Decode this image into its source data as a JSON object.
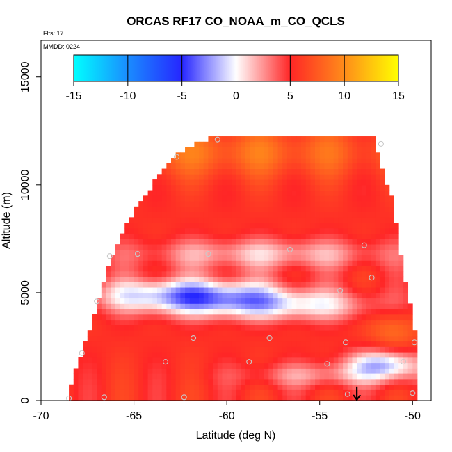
{
  "chart_data": {
    "type": "heatmap",
    "title": "ORCAS RF17 CO_NOAA_m_CO_QCLS",
    "annotations": {
      "flights": "Flts: 17",
      "date": "MMDD: 0224"
    },
    "xlabel": "Latitude (deg N)",
    "ylabel": "Altitude (m)",
    "xlim": [
      -70,
      -49
    ],
    "ylim": [
      0,
      16700
    ],
    "x_ticks": [
      {
        "value": -70,
        "label": "-70"
      },
      {
        "value": -65,
        "label": "-65"
      },
      {
        "value": -60,
        "label": "-60"
      },
      {
        "value": -55,
        "label": "-55"
      },
      {
        "value": -50,
        "label": "-50"
      }
    ],
    "y_ticks": [
      {
        "value": 0,
        "label": "0"
      },
      {
        "value": 5000,
        "label": "5000"
      },
      {
        "value": 10000,
        "label": "10000"
      },
      {
        "value": 15000,
        "label": "15000"
      }
    ],
    "colorbar": {
      "range": [
        -15,
        15
      ],
      "ticks": [
        {
          "value": -15,
          "label": "-15"
        },
        {
          "value": -10,
          "label": "-10"
        },
        {
          "value": -5,
          "label": "-5"
        },
        {
          "value": 0,
          "label": "0"
        },
        {
          "value": 5,
          "label": "5"
        },
        {
          "value": 10,
          "label": "10"
        },
        {
          "value": 15,
          "label": "15"
        }
      ],
      "stops": [
        {
          "value": -15,
          "color": "#00ffff"
        },
        {
          "value": -10,
          "color": "#1a8cff"
        },
        {
          "value": -5,
          "color": "#2626ff"
        },
        {
          "value": 0,
          "color": "#ffffff"
        },
        {
          "value": 5,
          "color": "#ff2626"
        },
        {
          "value": 10,
          "color": "#ff8c1a"
        },
        {
          "value": 15,
          "color": "#ffff00"
        }
      ]
    },
    "grid": {
      "lat_min": -69,
      "lat_max": -49.5,
      "lat_step": 0.25,
      "alt_max": 12250,
      "alt_step": 250
    },
    "domain_envelope": [
      {
        "lat": -68.5,
        "top": 250
      },
      {
        "lat": -68.3,
        "top": 1000
      },
      {
        "lat": -68.0,
        "top": 1500
      },
      {
        "lat": -67.7,
        "top": 2500
      },
      {
        "lat": -67.2,
        "top": 3600
      },
      {
        "lat": -66.8,
        "top": 4800
      },
      {
        "lat": -66.5,
        "top": 6000
      },
      {
        "lat": -66.0,
        "top": 7000
      },
      {
        "lat": -65.5,
        "top": 7900
      },
      {
        "lat": -65.0,
        "top": 8600
      },
      {
        "lat": -64.5,
        "top": 9300
      },
      {
        "lat": -64.0,
        "top": 9900
      },
      {
        "lat": -63.5,
        "top": 10500
      },
      {
        "lat": -63.0,
        "top": 11000
      },
      {
        "lat": -62.5,
        "top": 11400
      },
      {
        "lat": -62.0,
        "top": 11700
      },
      {
        "lat": -61.5,
        "top": 11850
      },
      {
        "lat": -61.0,
        "top": 12000
      },
      {
        "lat": -60.5,
        "top": 12250
      },
      {
        "lat": -52.0,
        "top": 12000
      },
      {
        "lat": -51.8,
        "top": 11000
      },
      {
        "lat": -51.5,
        "top": 10200
      },
      {
        "lat": -51.0,
        "top": 9000
      },
      {
        "lat": -50.7,
        "top": 7000
      },
      {
        "lat": -50.3,
        "top": 5000
      },
      {
        "lat": -50.0,
        "top": 3800
      },
      {
        "lat": -49.8,
        "top": 2600
      }
    ],
    "field_features": [
      {
        "lat": -62.0,
        "alt": 4900,
        "sigma_lat": 3.5,
        "sigma_alt": 550,
        "amp": -8,
        "note": "white band mid-left"
      },
      {
        "lat": -57.0,
        "alt": 4400,
        "sigma_lat": 4.0,
        "sigma_alt": 500,
        "amp": -5,
        "note": "pale band center"
      },
      {
        "lat": -58.0,
        "alt": 6800,
        "sigma_lat": 5.0,
        "sigma_alt": 500,
        "amp": -4,
        "note": "pale band upper"
      },
      {
        "lat": -51.5,
        "alt": 1700,
        "sigma_lat": 1.4,
        "sigma_alt": 500,
        "amp": -7,
        "note": "white patch lower right"
      },
      {
        "lat": -55.0,
        "alt": 1200,
        "sigma_lat": 3.0,
        "sigma_alt": 400,
        "amp": -3,
        "note": "pale band low"
      },
      {
        "lat": -60.0,
        "alt": 11500,
        "sigma_lat": 8.0,
        "sigma_alt": 800,
        "amp": 3,
        "note": "saturated top"
      },
      {
        "lat": -51.0,
        "alt": 3300,
        "sigma_lat": 1.0,
        "sigma_alt": 800,
        "amp": 3,
        "note": "saturated right edge"
      }
    ],
    "base_value": 5.5,
    "sample_points": [
      {
        "lat": -68.5,
        "alt": 100
      },
      {
        "lat": -66.6,
        "alt": 150
      },
      {
        "lat": -62.3,
        "alt": 150
      },
      {
        "lat": -67.8,
        "alt": 2200
      },
      {
        "lat": -67.0,
        "alt": 4600
      },
      {
        "lat": -66.3,
        "alt": 6700
      },
      {
        "lat": -64.8,
        "alt": 6800
      },
      {
        "lat": -63.3,
        "alt": 1800
      },
      {
        "lat": -62.7,
        "alt": 11300
      },
      {
        "lat": -61.8,
        "alt": 2900
      },
      {
        "lat": -61.0,
        "alt": 6800
      },
      {
        "lat": -60.5,
        "alt": 12100
      },
      {
        "lat": -58.8,
        "alt": 1800
      },
      {
        "lat": -57.7,
        "alt": 2900
      },
      {
        "lat": -56.6,
        "alt": 7000
      },
      {
        "lat": -54.6,
        "alt": 1700
      },
      {
        "lat": -53.9,
        "alt": 5100
      },
      {
        "lat": -53.6,
        "alt": 2700
      },
      {
        "lat": -53.5,
        "alt": 300
      },
      {
        "lat": -52.6,
        "alt": 7200
      },
      {
        "lat": -52.2,
        "alt": 5700
      },
      {
        "lat": -51.7,
        "alt": 11900
      },
      {
        "lat": -50.5,
        "alt": 1800
      },
      {
        "lat": -49.9,
        "alt": 2700
      },
      {
        "lat": -50.0,
        "alt": 350
      }
    ],
    "arrow": {
      "lat": -53.0,
      "alt_from": 650,
      "alt_to": 0
    }
  }
}
